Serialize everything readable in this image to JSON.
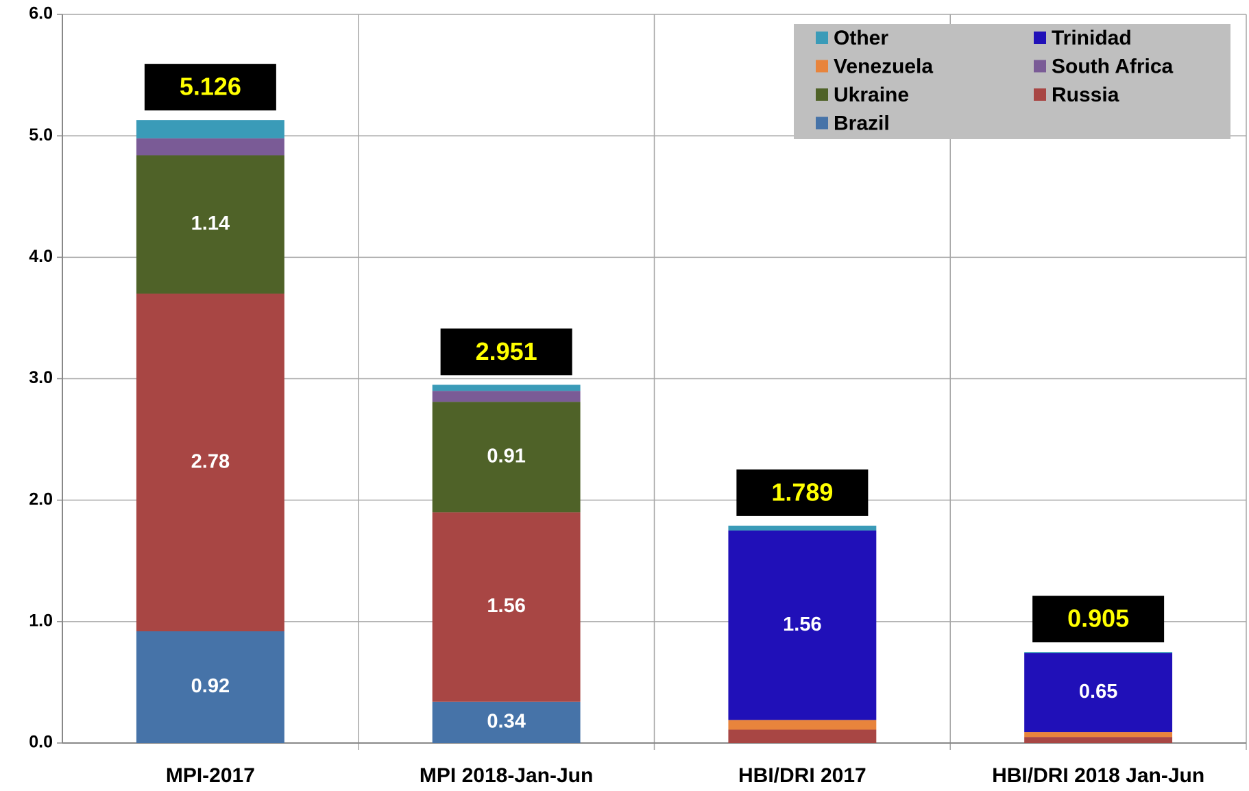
{
  "chart_data": {
    "type": "stacked-bar",
    "categories": [
      "MPI-2017",
      "MPI 2018-Jan-Jun",
      "HBI/DRI 2017",
      "HBI/DRI 2018 Jan-Jun"
    ],
    "series": [
      {
        "name": "Brazil",
        "color": "#4673a8",
        "values": [
          0.92,
          0.34,
          0,
          0
        ]
      },
      {
        "name": "Russia",
        "color": "#a84644",
        "values": [
          2.78,
          1.56,
          0.11,
          0.05
        ]
      },
      {
        "name": "Ukraine",
        "color": "#4f6228",
        "values": [
          1.14,
          0.91,
          0,
          0
        ]
      },
      {
        "name": "South Africa",
        "color": "#7a5b96",
        "values": [
          0.14,
          0.09,
          0,
          0
        ]
      },
      {
        "name": "Venezuela",
        "color": "#e8843c",
        "values": [
          0,
          0,
          0.08,
          0.04
        ]
      },
      {
        "name": "Trinidad",
        "color": "#2010b8",
        "values": [
          0,
          0,
          1.56,
          0.65
        ]
      },
      {
        "name": "Other",
        "color": "#3a9bb8",
        "values": [
          0.15,
          0.05,
          0.04,
          0.01
        ]
      }
    ],
    "totals": [
      5.126,
      2.951,
      1.789,
      0.905
    ],
    "ylim": [
      0,
      6
    ],
    "yticks": [
      {
        "value": 0,
        "label": "0.0"
      },
      {
        "value": 1,
        "label": "1.0"
      },
      {
        "value": 2,
        "label": "2.0"
      },
      {
        "value": 3,
        "label": "3.0"
      },
      {
        "value": 4,
        "label": "4.0"
      },
      {
        "value": 5,
        "label": "5.0"
      },
      {
        "value": 6,
        "label": "6.0"
      }
    ],
    "grid": true,
    "legend": "upper right"
  }
}
